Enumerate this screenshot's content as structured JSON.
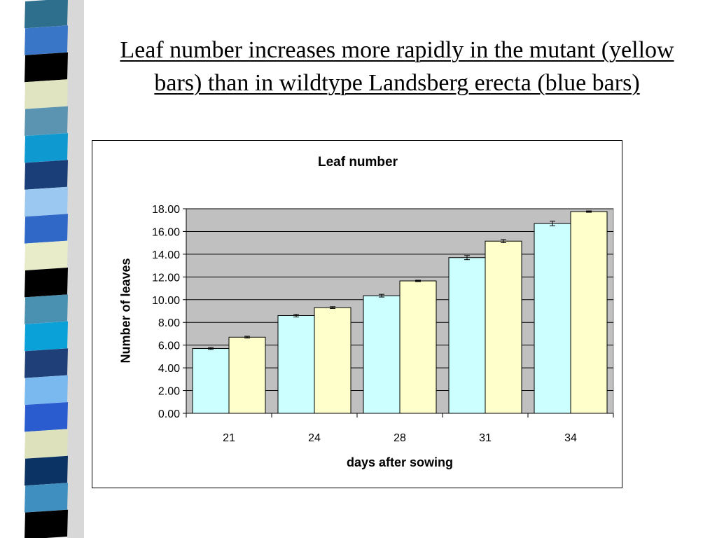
{
  "slide": {
    "title": "Leaf number increases more rapidly in the mutant (yellow bars) than in wildtype Landsberg erecta (blue bars)"
  },
  "colors": {
    "wildtype": "#ccffff",
    "mutant": "#ffffcc",
    "plot_background": "#c0c0c0",
    "strip": [
      "#2e6f8e",
      "#3a76c8",
      "#000000",
      "#e0e4c0",
      "#5b94b0",
      "#0e9ad0",
      "#1a3f78",
      "#9ac8f0",
      "#3068c8",
      "#e8ecc8",
      "#000000",
      "#4a90b0",
      "#0aa0d8",
      "#1e3f78",
      "#7ab8f0",
      "#2a5cd0",
      "#dde2bc",
      "#0b3464",
      "#3f8fc0",
      "#000000"
    ]
  },
  "chart_data": {
    "type": "bar",
    "title": "Leaf number",
    "xlabel": "days after sowing",
    "ylabel": "Number of leaves",
    "categories": [
      "21",
      "24",
      "28",
      "31",
      "34"
    ],
    "series": [
      {
        "values": [
          5.7,
          8.6,
          10.35,
          13.7,
          16.7
        ],
        "errors": [
          0.08,
          0.12,
          0.12,
          0.18,
          0.2
        ],
        "color": "#ccffff"
      },
      {
        "values": [
          6.7,
          9.3,
          11.65,
          15.15,
          17.75
        ],
        "errors": [
          0.08,
          0.08,
          0.06,
          0.14,
          0.06
        ],
        "color": "#ffffcc"
      }
    ],
    "ylim": [
      0,
      18
    ],
    "yticks": [
      "0.00",
      "2.00",
      "4.00",
      "6.00",
      "8.00",
      "10.00",
      "12.00",
      "14.00",
      "16.00",
      "18.00"
    ],
    "grid": true,
    "legend": "none"
  }
}
